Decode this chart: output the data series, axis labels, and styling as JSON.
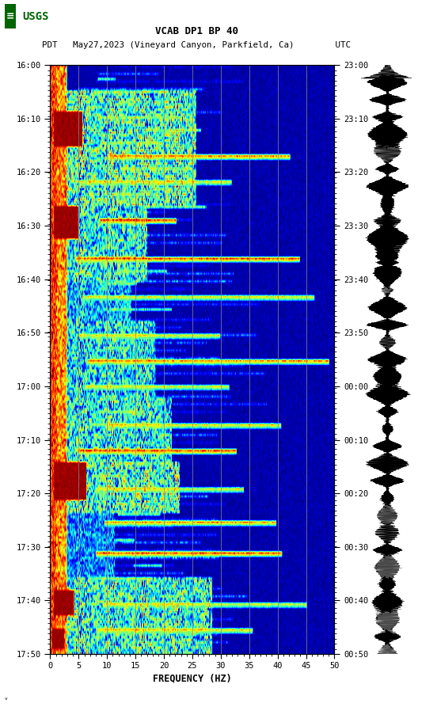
{
  "title_line1": "VCAB DP1 BP 40",
  "title_line2": "PDT   May27,2023 (Vineyard Canyon, Parkfield, Ca)        UTC",
  "xlabel": "FREQUENCY (HZ)",
  "freq_min": 0,
  "freq_max": 50,
  "ytick_labels_left": [
    "16:00",
    "16:10",
    "16:20",
    "16:30",
    "16:40",
    "16:50",
    "17:00",
    "17:10",
    "17:20",
    "17:30",
    "17:40",
    "17:50"
  ],
  "ytick_labels_right": [
    "23:00",
    "23:10",
    "23:20",
    "23:30",
    "23:40",
    "23:50",
    "00:00",
    "00:10",
    "00:20",
    "00:30",
    "00:40",
    "00:50"
  ],
  "xtick_labels": [
    "0",
    "5",
    "10",
    "15",
    "20",
    "25",
    "30",
    "35",
    "40",
    "45",
    "50"
  ],
  "vline_positions": [
    5,
    10,
    15,
    20,
    25,
    30,
    35,
    40,
    45
  ],
  "vline_color": "#888888",
  "background_color": "#ffffff",
  "spectrogram_colormap": "jet",
  "fig_width": 5.52,
  "fig_height": 8.93,
  "dpi": 100,
  "usgs_logo_color": "#006400",
  "noise_seed": 42
}
